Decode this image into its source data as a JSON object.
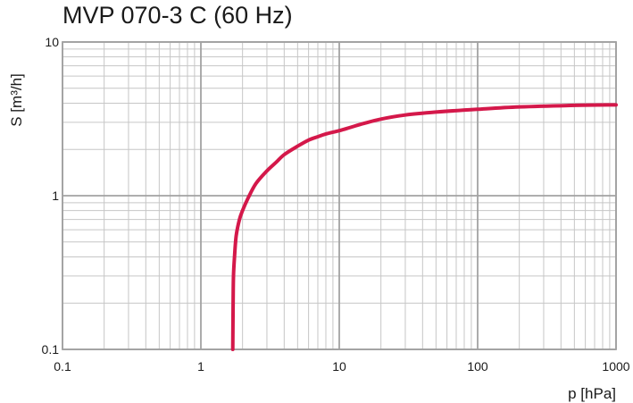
{
  "chart_data": {
    "type": "line",
    "title": "MVP 070-3 C (60 Hz)",
    "xlabel": "p  [hPa]",
    "ylabel": "S  [m³/h]",
    "xscale": "log",
    "yscale": "log",
    "xlim": [
      0.1,
      1000
    ],
    "ylim": [
      0.1,
      10
    ],
    "grid": true,
    "x_ticks": [
      {
        "value": 0.1,
        "label": "0.1"
      },
      {
        "value": 1,
        "label": "1"
      },
      {
        "value": 10,
        "label": "10"
      },
      {
        "value": 100,
        "label": "100"
      },
      {
        "value": 1000,
        "label": "1000"
      }
    ],
    "y_ticks": [
      {
        "value": 0.1,
        "label": "0.1"
      },
      {
        "value": 1,
        "label": "1"
      },
      {
        "value": 10,
        "label": "10"
      }
    ],
    "series": [
      {
        "color": "#d4184a",
        "x": [
          1.7,
          1.71,
          1.72,
          1.75,
          1.8,
          1.9,
          2.0,
          2.2,
          2.5,
          3.0,
          3.5,
          4.0,
          5.0,
          6.0,
          7.0,
          8.0,
          10,
          12,
          15,
          20,
          30,
          50,
          100,
          200,
          500,
          1000
        ],
        "y": [
          0.1,
          0.2,
          0.3,
          0.4,
          0.55,
          0.7,
          0.8,
          0.97,
          1.2,
          1.45,
          1.65,
          1.85,
          2.1,
          2.3,
          2.42,
          2.52,
          2.65,
          2.78,
          2.95,
          3.15,
          3.35,
          3.5,
          3.65,
          3.78,
          3.87,
          3.9
        ]
      }
    ]
  }
}
